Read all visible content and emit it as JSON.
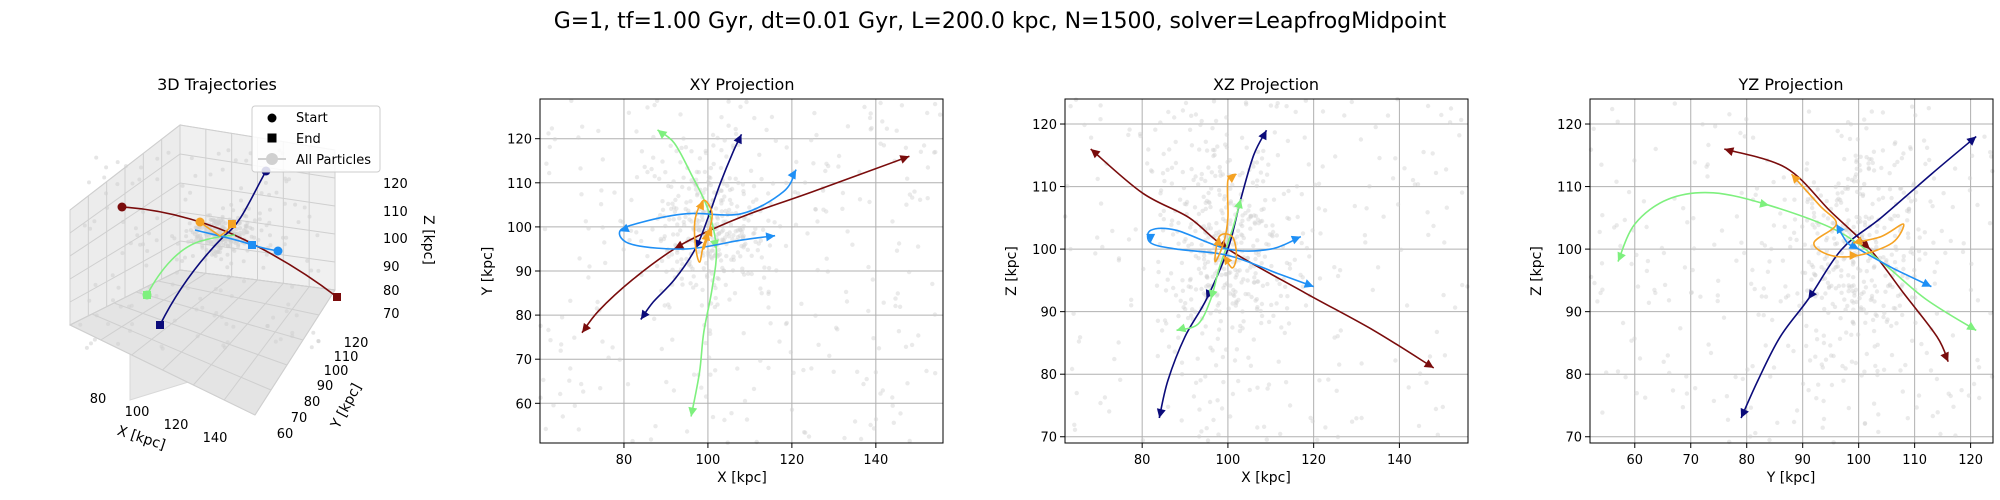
{
  "figure": {
    "suptitle": "G=1, tf=1.00 Gyr, dt=0.01 Gyr, L=200.0 kpc, N=1500, solver=LeapfrogMidpoint"
  },
  "colors": {
    "navy": "#0b0b7a",
    "blue": "#1e8ff5",
    "green": "#7ef07e",
    "orange": "#f5a223",
    "darkred": "#7a0c0c",
    "background_particles": "#d0d0d0",
    "grid": "#b0b0b0"
  },
  "legend": {
    "start_label": "Start",
    "end_label": "End",
    "all_label": "All Particles"
  },
  "chart_data": [
    {
      "id": "p3d",
      "type": "scatter",
      "title": "3D Trajectories",
      "xlabel": "X [kpc]",
      "ylabel": "Y [kpc]",
      "zlabel": "Z [kpc]",
      "xticks": [
        "80",
        "100",
        "120",
        "140"
      ],
      "yticks": [
        "60",
        "70",
        "80",
        "90",
        "100",
        "110",
        "120"
      ],
      "zticks": [
        "70",
        "80",
        "90",
        "100",
        "110",
        "120"
      ],
      "legend_position": "upper right"
    },
    {
      "id": "xy",
      "type": "line",
      "title": "XY Projection",
      "xlabel": "X [kpc]",
      "ylabel": "Y [kpc]",
      "xlim": [
        60,
        156
      ],
      "ylim": [
        51,
        129
      ],
      "xticks": [
        80,
        100,
        120,
        140
      ],
      "yticks": [
        60,
        70,
        80,
        90,
        100,
        110,
        120
      ],
      "grid": true,
      "series": [
        {
          "color": "darkred",
          "points": [
            [
              148,
              116
            ],
            [
              125,
              108
            ],
            [
              110,
              103
            ],
            [
              100,
              99
            ],
            [
              92,
              95
            ],
            [
              82,
              88
            ],
            [
              74,
              81
            ],
            [
              70,
              76
            ]
          ]
        },
        {
          "color": "navy",
          "points": [
            [
              108,
              121
            ],
            [
              106,
              117
            ],
            [
              103,
              110
            ],
            [
              100,
              102
            ],
            [
              97,
              95
            ],
            [
              92,
              88
            ],
            [
              87,
              83
            ],
            [
              84,
              79
            ]
          ]
        },
        {
          "color": "green",
          "points": [
            [
              88,
              122
            ],
            [
              92,
              119
            ],
            [
              96,
              112
            ],
            [
              100,
              104
            ],
            [
              102,
              95
            ],
            [
              101,
              86
            ],
            [
              99,
              76
            ],
            [
              98,
              67
            ],
            [
              96,
              57
            ]
          ]
        },
        {
          "color": "blue",
          "points": [
            [
              121,
              113
            ],
            [
              118,
              108
            ],
            [
              108,
              103
            ],
            [
              95,
              103
            ],
            [
              84,
              101
            ],
            [
              79,
              99
            ],
            [
              82,
              96
            ],
            [
              95,
              95
            ],
            [
              108,
              97
            ],
            [
              116,
              98
            ]
          ]
        },
        {
          "color": "orange",
          "points": [
            [
              101,
              100
            ],
            [
              99,
              96
            ],
            [
              98,
              92
            ],
            [
              97,
              96
            ],
            [
              97,
              102
            ],
            [
              99,
              106
            ],
            [
              101,
              103
            ],
            [
              100,
              98
            ],
            [
              99,
              95
            ],
            [
              100,
              99
            ]
          ]
        }
      ],
      "scatter_count": 600
    },
    {
      "id": "xz",
      "type": "line",
      "title": "XZ Projection",
      "xlabel": "X [kpc]",
      "ylabel": "Z [kpc]",
      "xlim": [
        62,
        156
      ],
      "ylim": [
        69,
        124
      ],
      "xticks": [
        80,
        100,
        120,
        140
      ],
      "yticks": [
        70,
        80,
        90,
        100,
        110,
        120
      ],
      "grid": true,
      "series": [
        {
          "color": "darkred",
          "points": [
            [
              68,
              116
            ],
            [
              80,
              109
            ],
            [
              91,
              105
            ],
            [
              100,
              100
            ],
            [
              118,
              93
            ],
            [
              134,
              87
            ],
            [
              148,
              81
            ]
          ]
        },
        {
          "color": "navy",
          "points": [
            [
              109,
              119
            ],
            [
              106,
              115
            ],
            [
              103,
              108
            ],
            [
              100,
              100
            ],
            [
              95,
              92
            ],
            [
              90,
              86
            ],
            [
              86,
              79
            ],
            [
              84,
              73
            ]
          ]
        },
        {
          "color": "green",
          "points": [
            [
              103,
              108
            ],
            [
              101,
              103
            ],
            [
              98,
              97
            ],
            [
              96,
              92
            ],
            [
              93,
              88
            ],
            [
              88,
              87
            ]
          ]
        },
        {
          "color": "blue",
          "points": [
            [
              117,
              102
            ],
            [
              110,
              100
            ],
            [
              100,
              100
            ],
            [
              88,
              103
            ],
            [
              82,
              103
            ],
            [
              82,
              101
            ],
            [
              88,
              100
            ],
            [
              100,
              99
            ],
            [
              112,
              96
            ],
            [
              120,
              94
            ]
          ]
        },
        {
          "color": "orange",
          "points": [
            [
              102,
              112
            ],
            [
              100,
              111
            ],
            [
              100,
              105
            ],
            [
              99,
              101
            ],
            [
              97,
              98
            ],
            [
              98,
              102
            ],
            [
              101,
              102
            ],
            [
              102,
              99
            ],
            [
              101,
              97
            ],
            [
              99,
              99
            ]
          ]
        }
      ],
      "scatter_count": 600
    },
    {
      "id": "yz",
      "type": "line",
      "title": "YZ Projection",
      "xlabel": "Y [kpc]",
      "ylabel": "Z [kpc]",
      "xlim": [
        52,
        124
      ],
      "ylim": [
        69,
        124
      ],
      "xticks": [
        60,
        70,
        80,
        90,
        100,
        110,
        120
      ],
      "yticks": [
        70,
        80,
        90,
        100,
        110,
        120
      ],
      "grid": true,
      "series": [
        {
          "color": "darkred",
          "points": [
            [
              76,
              116
            ],
            [
              87,
              113
            ],
            [
              95,
              106
            ],
            [
              102,
              100
            ],
            [
              108,
              93
            ],
            [
              114,
              86
            ],
            [
              116,
              82
            ]
          ]
        },
        {
          "color": "navy",
          "points": [
            [
              121,
              118
            ],
            [
              113,
              112
            ],
            [
              104,
              105
            ],
            [
              97,
              100
            ],
            [
              91,
              92
            ],
            [
              86,
              86
            ],
            [
              82,
              79
            ],
            [
              79,
              73
            ]
          ]
        },
        {
          "color": "green",
          "points": [
            [
              57,
              98
            ],
            [
              60,
              104
            ],
            [
              66,
              108
            ],
            [
              74,
              109
            ],
            [
              84,
              107
            ],
            [
              96,
              103
            ],
            [
              104,
              98
            ],
            [
              112,
              92
            ],
            [
              121,
              87
            ]
          ]
        },
        {
          "color": "blue",
          "points": [
            [
              96,
              104
            ],
            [
              98,
              101
            ],
            [
              100,
              100
            ],
            [
              106,
              97
            ],
            [
              113,
              94
            ]
          ]
        },
        {
          "color": "orange",
          "points": [
            [
              88,
              112
            ],
            [
              93,
              107
            ],
            [
              96,
              104
            ],
            [
              92,
              101
            ],
            [
              95,
              99
            ],
            [
              100,
              99
            ],
            [
              106,
              101
            ],
            [
              108,
              104
            ],
            [
              104,
              102
            ],
            [
              99,
              101
            ]
          ]
        }
      ],
      "scatter_count": 600
    }
  ]
}
